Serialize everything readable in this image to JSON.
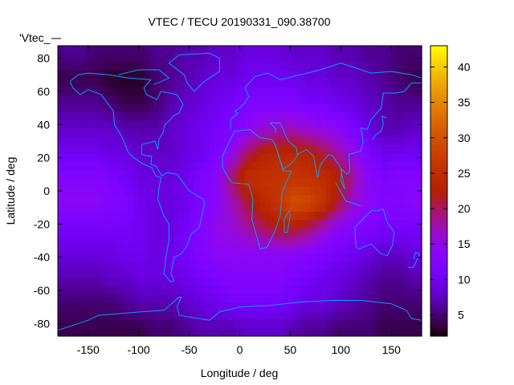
{
  "chart_data": {
    "type": "heatmap",
    "title": "VTEC / TECU 20190331_090.38700",
    "xlabel": "Longitude / deg",
    "ylabel": "Latitude / deg",
    "key_label": "'Vtec_",
    "xlim": [
      -180,
      180
    ],
    "ylim": [
      -87.5,
      87.5
    ],
    "xticks": [
      -150,
      -100,
      -50,
      0,
      50,
      100,
      150
    ],
    "yticks": [
      -80,
      -60,
      -40,
      -20,
      0,
      20,
      40,
      60,
      80
    ],
    "colorbar": {
      "range": [
        2,
        43
      ],
      "ticks": [
        5,
        10,
        15,
        20,
        25,
        30,
        35,
        40
      ],
      "palette": "black-purple-red-yellow"
    },
    "coastline_color": "#0a9cff",
    "grid_lon": [
      -172.5,
      -157.5,
      -142.5,
      -127.5,
      -112.5,
      -97.5,
      -82.5,
      -67.5,
      -52.5,
      -37.5,
      -22.5,
      -7.5,
      7.5,
      22.5,
      37.5,
      52.5,
      67.5,
      82.5,
      97.5,
      112.5,
      127.5,
      142.5,
      157.5,
      172.5
    ],
    "grid_lat": [
      82.5,
      67.5,
      52.5,
      37.5,
      22.5,
      7.5,
      -7.5,
      -22.5,
      -37.5,
      -52.5,
      -67.5,
      -82.5
    ],
    "values": [
      [
        6,
        6,
        5,
        5,
        5,
        5,
        6,
        6,
        7,
        7,
        8,
        8,
        9,
        9,
        9,
        8,
        8,
        8,
        7,
        7,
        6,
        6,
        5,
        5
      ],
      [
        4,
        4,
        4,
        3,
        3,
        3,
        5,
        6,
        7,
        8,
        9,
        9,
        10,
        10,
        10,
        10,
        9,
        9,
        8,
        8,
        7,
        6,
        5,
        4
      ],
      [
        6,
        6,
        6,
        5,
        4,
        4,
        5,
        7,
        8,
        9,
        10,
        11,
        12,
        12,
        12,
        12,
        11,
        11,
        10,
        9,
        8,
        7,
        6,
        6
      ],
      [
        8,
        8,
        8,
        8,
        7,
        7,
        7,
        8,
        9,
        10,
        11,
        12,
        14,
        16,
        17,
        17,
        16,
        15,
        14,
        12,
        9,
        7,
        7,
        8
      ],
      [
        10,
        10,
        10,
        9,
        9,
        8,
        8,
        8,
        9,
        10,
        12,
        15,
        20,
        23,
        24,
        24,
        23,
        21,
        18,
        15,
        12,
        10,
        10,
        10
      ],
      [
        13,
        13,
        13,
        12,
        11,
        9,
        9,
        9,
        10,
        12,
        14,
        20,
        25,
        26,
        26,
        26,
        26,
        25,
        23,
        18,
        14,
        12,
        13,
        13
      ],
      [
        14,
        14,
        14,
        13,
        12,
        10,
        9,
        9,
        10,
        12,
        14,
        17,
        21,
        24,
        26,
        30,
        29,
        26,
        21,
        16,
        14,
        13,
        13,
        14
      ],
      [
        11,
        11,
        11,
        11,
        11,
        10,
        9,
        9,
        11,
        13,
        15,
        16,
        18,
        20,
        22,
        22,
        20,
        17,
        14,
        13,
        12,
        11,
        11,
        11
      ],
      [
        9,
        9,
        9,
        9,
        10,
        10,
        9,
        10,
        11,
        13,
        14,
        14,
        14,
        14,
        14,
        14,
        13,
        12,
        11,
        10,
        9,
        8,
        8,
        9
      ],
      [
        7,
        7,
        7,
        8,
        8,
        9,
        9,
        9,
        10,
        11,
        12,
        13,
        13,
        13,
        13,
        12,
        11,
        10,
        9,
        8,
        7,
        6,
        6,
        7
      ],
      [
        5,
        5,
        5,
        5,
        6,
        7,
        7,
        7,
        8,
        9,
        10,
        11,
        11,
        11,
        11,
        10,
        9,
        9,
        8,
        7,
        6,
        5,
        5,
        5
      ],
      [
        4,
        4,
        4,
        4,
        4,
        4,
        5,
        5,
        6,
        7,
        7,
        7,
        8,
        8,
        8,
        7,
        6,
        6,
        5,
        5,
        5,
        4,
        4,
        4
      ]
    ]
  }
}
